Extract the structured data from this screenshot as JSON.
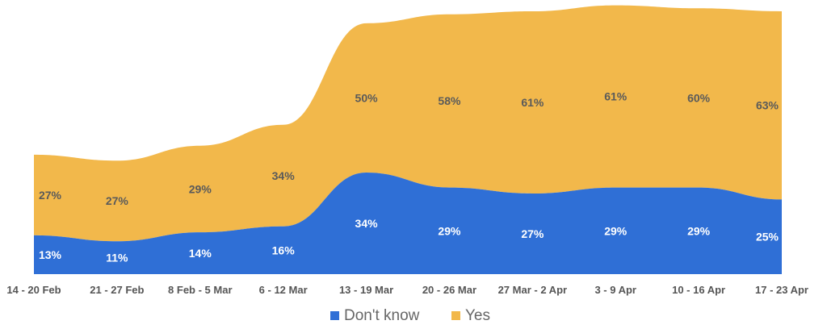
{
  "chart_data": {
    "type": "area",
    "stacked": true,
    "categories": [
      "14 - 20 Feb",
      "21 - 27 Feb",
      "8 Feb - 5 Mar",
      "6 - 12 Mar",
      "13 - 19 Mar",
      "20 - 26 Mar",
      "27 Mar - 2 Apr",
      "3 - 9 Apr",
      "10 - 16 Apr",
      "17 - 23 Apr"
    ],
    "series": [
      {
        "name": "Don't know",
        "color": "#2f6fd6",
        "label_color": "#ffffff",
        "values": [
          13,
          11,
          14,
          16,
          34,
          29,
          27,
          29,
          29,
          25
        ],
        "labels": [
          "13%",
          "11%",
          "14%",
          "16%",
          "34%",
          "29%",
          "27%",
          "29%",
          "29%",
          "25%"
        ]
      },
      {
        "name": "Yes",
        "color": "#f2b84b",
        "label_color": "#5a5a5a",
        "values": [
          27,
          27,
          29,
          34,
          50,
          58,
          61,
          61,
          60,
          63
        ],
        "labels": [
          "27%",
          "27%",
          "29%",
          "34%",
          "50%",
          "58%",
          "61%",
          "61%",
          "60%",
          "63%"
        ]
      }
    ],
    "legend_position": "bottom-center",
    "grid": false,
    "ylim": [
      0,
      88
    ],
    "xlabel": "",
    "ylabel": "",
    "title": ""
  }
}
